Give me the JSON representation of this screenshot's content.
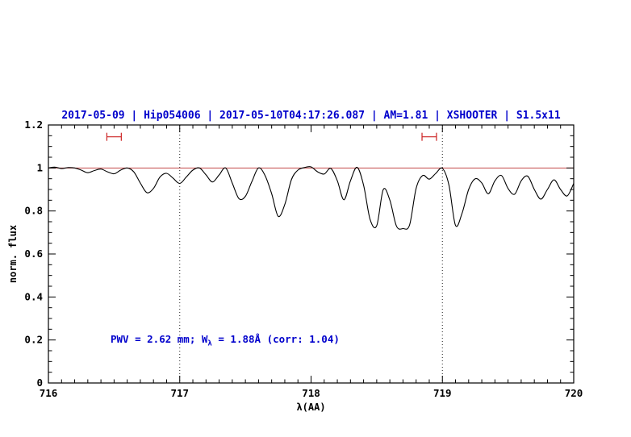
{
  "title": "2017-05-09 | Hip054006 | 2017-05-10T04:17:26.087 | AM=1.81 | XSHOOTER | S1.5x11",
  "annotation": {
    "part1": "PWV = 2.62 mm; W",
    "sub": "λ",
    "part2": " = 1.88Å (corr: 1.04)"
  },
  "colors": {
    "accent": "#0000cc",
    "spectrum": "#000000",
    "reference_line": "#c24a4a",
    "marker": "#cc2222",
    "frame": "#000000"
  },
  "chart_data": {
    "type": "line",
    "title": "2017-05-09 | Hip054006 | 2017-05-10T04:17:26.087 | AM=1.81 | XSHOOTER | S1.5x11",
    "xlabel": "λ(AA)",
    "ylabel": "norm. flux",
    "xlim": [
      716,
      720
    ],
    "ylim": [
      0,
      1.2
    ],
    "xticks": [
      716,
      717,
      718,
      719,
      720
    ],
    "xtick_labels": [
      "716",
      "717",
      "718",
      "719",
      "720"
    ],
    "yticks": [
      0,
      0.2,
      0.4,
      0.6,
      0.8,
      1,
      1.2
    ],
    "ytick_labels": [
      "0",
      "0.2",
      "0.4",
      "0.6",
      "0.8",
      "1",
      "1.2"
    ],
    "minor_x_step": 0.1,
    "minor_y_step": 0.05,
    "grid": false,
    "legend": "none",
    "dotted_vlines": [
      717,
      719
    ],
    "continuum_line_y": 1.0,
    "markers": [
      {
        "x_center": 716.5,
        "half_width": 0.055,
        "y": 1.145
      },
      {
        "x_center": 718.9,
        "half_width": 0.055,
        "y": 1.145
      }
    ],
    "series": [
      {
        "name": "normalized telluric spectrum",
        "points": [
          [
            716.0,
            1.0
          ],
          [
            716.05,
            1.004
          ],
          [
            716.1,
            0.997
          ],
          [
            716.15,
            1.002
          ],
          [
            716.2,
            1.0
          ],
          [
            716.25,
            0.99
          ],
          [
            716.3,
            0.978
          ],
          [
            716.35,
            0.988
          ],
          [
            716.4,
            0.995
          ],
          [
            716.45,
            0.982
          ],
          [
            716.5,
            0.973
          ],
          [
            716.55,
            0.99
          ],
          [
            716.6,
            1.0
          ],
          [
            716.65,
            0.982
          ],
          [
            716.7,
            0.93
          ],
          [
            716.75,
            0.885
          ],
          [
            716.8,
            0.905
          ],
          [
            716.85,
            0.958
          ],
          [
            716.9,
            0.975
          ],
          [
            716.95,
            0.952
          ],
          [
            717.0,
            0.928
          ],
          [
            717.05,
            0.958
          ],
          [
            717.1,
            0.99
          ],
          [
            717.15,
            1.0
          ],
          [
            717.2,
            0.968
          ],
          [
            717.25,
            0.935
          ],
          [
            717.3,
            0.968
          ],
          [
            717.35,
            1.0
          ],
          [
            717.4,
            0.93
          ],
          [
            717.45,
            0.858
          ],
          [
            717.5,
            0.868
          ],
          [
            717.55,
            0.938
          ],
          [
            717.6,
            1.0
          ],
          [
            717.65,
            0.965
          ],
          [
            717.7,
            0.88
          ],
          [
            717.75,
            0.775
          ],
          [
            717.8,
            0.83
          ],
          [
            717.85,
            0.945
          ],
          [
            717.9,
            0.99
          ],
          [
            717.95,
            1.002
          ],
          [
            718.0,
            1.005
          ],
          [
            718.05,
            0.982
          ],
          [
            718.1,
            0.972
          ],
          [
            718.15,
            0.998
          ],
          [
            718.2,
            0.94
          ],
          [
            718.25,
            0.852
          ],
          [
            718.3,
            0.94
          ],
          [
            718.35,
            1.003
          ],
          [
            718.4,
            0.92
          ],
          [
            718.45,
            0.76
          ],
          [
            718.5,
            0.732
          ],
          [
            718.55,
            0.9
          ],
          [
            718.6,
            0.85
          ],
          [
            718.65,
            0.73
          ],
          [
            718.7,
            0.718
          ],
          [
            718.75,
            0.735
          ],
          [
            718.8,
            0.905
          ],
          [
            718.85,
            0.965
          ],
          [
            718.9,
            0.948
          ],
          [
            718.95,
            0.975
          ],
          [
            719.0,
            0.998
          ],
          [
            719.05,
            0.92
          ],
          [
            719.1,
            0.733
          ],
          [
            719.15,
            0.79
          ],
          [
            719.2,
            0.9
          ],
          [
            719.25,
            0.95
          ],
          [
            719.3,
            0.93
          ],
          [
            719.35,
            0.88
          ],
          [
            719.4,
            0.94
          ],
          [
            719.45,
            0.965
          ],
          [
            719.5,
            0.905
          ],
          [
            719.55,
            0.878
          ],
          [
            719.6,
            0.94
          ],
          [
            719.65,
            0.962
          ],
          [
            719.7,
            0.9
          ],
          [
            719.75,
            0.855
          ],
          [
            719.8,
            0.9
          ],
          [
            719.85,
            0.945
          ],
          [
            719.9,
            0.9
          ],
          [
            719.95,
            0.87
          ],
          [
            720.0,
            0.928
          ]
        ]
      }
    ]
  }
}
